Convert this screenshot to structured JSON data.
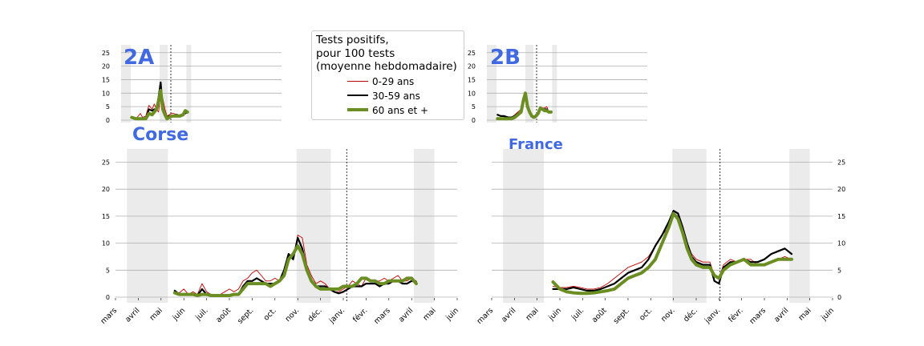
{
  "colors": {
    "age_0_29": "#c00000",
    "age_30_59": "#000000",
    "age_60_plus": "#6b8e23",
    "region_title": "#4169e1",
    "grid": "#b0b0b0",
    "shade": "#ebebeb"
  },
  "legend": {
    "title_lines": [
      "Tests positifs,",
      "pour 100 tests",
      "(moyenne hebdomadaire)"
    ],
    "entries": [
      "0-29 ans",
      "30-59 ans",
      "60 ans et +"
    ]
  },
  "chart_data": [
    {
      "type": "line",
      "title": "2A",
      "y_ticks": [
        0,
        5,
        10,
        15,
        20,
        25
      ],
      "ylim": [
        0,
        28
      ],
      "x_range_months": [
        0,
        15
      ],
      "shaded_periods_months": [
        [
          0,
          0.9
        ],
        [
          3.6,
          4.35
        ],
        [
          6.1,
          6.55
        ]
      ],
      "dashed_line_month": 4.65,
      "series": [
        {
          "name": "0-29 ans",
          "x": [
            1.0,
            1.4,
            1.8,
            2.0,
            2.3,
            2.6,
            2.9,
            3.1,
            3.3,
            3.5,
            3.7,
            3.9,
            4.1,
            4.3,
            4.5,
            4.7,
            4.9,
            5.2,
            5.5,
            5.8,
            6.0,
            6.2
          ],
          "y": [
            1,
            0.5,
            2.5,
            1,
            1.5,
            5.5,
            4,
            6,
            4,
            3,
            10,
            8,
            4,
            1.5,
            2,
            2.5,
            2.5,
            2,
            2,
            2.5,
            3,
            3
          ]
        },
        {
          "name": "30-59 ans",
          "x": [
            1.0,
            1.4,
            1.8,
            2.0,
            2.3,
            2.6,
            2.9,
            3.1,
            3.3,
            3.5,
            3.7,
            3.9,
            4.1,
            4.3,
            4.5,
            4.7,
            4.9,
            5.2,
            5.5,
            5.8,
            6.0,
            6.2
          ],
          "y": [
            1,
            0.5,
            0.5,
            0.5,
            0.5,
            4,
            3.5,
            4,
            4,
            8.5,
            14,
            4,
            2,
            1,
            1.5,
            1.5,
            1.5,
            2,
            1.5,
            2,
            2.5,
            3
          ]
        },
        {
          "name": "60 ans et +",
          "x": [
            1.0,
            1.4,
            1.8,
            2.0,
            2.3,
            2.6,
            2.9,
            3.1,
            3.3,
            3.5,
            3.7,
            3.9,
            4.1,
            4.3,
            4.5,
            4.7,
            4.9,
            5.2,
            5.5,
            5.8,
            6.0,
            6.2
          ],
          "y": [
            1,
            0.5,
            0.5,
            0.5,
            0.5,
            2.5,
            2,
            3,
            4,
            7,
            11,
            4,
            2,
            0.5,
            1,
            1.5,
            1.5,
            1.5,
            1.5,
            2,
            3.5,
            3
          ]
        }
      ]
    },
    {
      "type": "line",
      "title": "2B",
      "y_ticks": [
        0,
        5,
        10,
        15,
        20,
        25
      ],
      "ylim": [
        0,
        28
      ],
      "x_range_months": [
        0,
        15
      ],
      "shaded_periods_months": [
        [
          0,
          0.9
        ],
        [
          3.6,
          4.35
        ],
        [
          6.1,
          6.55
        ]
      ],
      "dashed_line_month": 4.65,
      "series": [
        {
          "name": "0-29 ans",
          "x": [
            1.0,
            1.3,
            1.6,
            2.0,
            2.3,
            2.6,
            2.9,
            3.2,
            3.4,
            3.6,
            3.8,
            4.0,
            4.2,
            4.4,
            4.6,
            4.8,
            5.0,
            5.2,
            5.4,
            5.6,
            5.8,
            6.0
          ],
          "y": [
            1,
            0.5,
            1,
            0.5,
            1,
            2,
            3,
            4,
            8,
            9,
            5,
            3,
            1.5,
            1,
            2,
            3,
            5,
            4.5,
            4.5,
            5,
            3,
            3
          ]
        },
        {
          "name": "30-59 ans",
          "x": [
            1.0,
            1.3,
            1.6,
            2.0,
            2.3,
            2.6,
            2.9,
            3.2,
            3.4,
            3.6,
            3.8,
            4.0,
            4.2,
            4.4,
            4.6,
            4.8,
            5.0,
            5.2,
            5.4,
            5.6,
            5.8,
            6.0
          ],
          "y": [
            2,
            1.5,
            1.5,
            1,
            1,
            1.5,
            2.5,
            3,
            8,
            8,
            5,
            2.5,
            1.5,
            1,
            2,
            2.5,
            4,
            4,
            4,
            4,
            3,
            3
          ]
        },
        {
          "name": "60 ans et +",
          "x": [
            1.0,
            1.3,
            1.6,
            2.0,
            2.3,
            2.6,
            2.9,
            3.2,
            3.4,
            3.6,
            3.8,
            4.0,
            4.2,
            4.4,
            4.6,
            4.8,
            5.0,
            5.2,
            5.4,
            5.6,
            5.8,
            6.0
          ],
          "y": [
            0.5,
            0.5,
            0.5,
            0.5,
            0.5,
            1,
            2,
            3,
            7,
            10,
            5,
            3,
            1.5,
            1,
            1.5,
            2.5,
            4.5,
            4,
            3.5,
            3.5,
            3,
            3
          ]
        }
      ]
    },
    {
      "type": "line",
      "title": "Corse",
      "y_ticks": [
        0,
        5,
        10,
        15,
        20,
        25
      ],
      "ylim": [
        -0.5,
        27.5
      ],
      "x_tick_labels": [
        "mars",
        "avril",
        "mai",
        "juin",
        "juil.",
        "août",
        "sept.",
        "oct.",
        "nov.",
        "déc.",
        "janv.",
        "févr.",
        "mars",
        "avril",
        "mai",
        "juin"
      ],
      "x_range_months": [
        0,
        15
      ],
      "shaded_periods_months": [
        [
          0.5,
          2.3
        ],
        [
          7.95,
          9.45
        ],
        [
          13.1,
          14.0
        ]
      ],
      "dashed_line_month": 10.15,
      "series": [
        {
          "name": "0-29 ans",
          "x": [
            2.6,
            2.8,
            3.0,
            3.2,
            3.4,
            3.6,
            3.8,
            4.0,
            4.2,
            4.4,
            4.6,
            4.8,
            5.0,
            5.2,
            5.4,
            5.6,
            5.8,
            6.0,
            6.2,
            6.4,
            6.6,
            6.8,
            7.0,
            7.2,
            7.4,
            7.6,
            7.8,
            8.0,
            8.2,
            8.4,
            8.6,
            8.8,
            9.0,
            9.2,
            9.4,
            9.6,
            9.8,
            10.0,
            10.2,
            10.4,
            10.6,
            10.8,
            11.0,
            11.2,
            11.4,
            11.6,
            11.8,
            12.0,
            12.2,
            12.4,
            12.6,
            12.8,
            13.0,
            13.2
          ],
          "y": [
            1,
            0.8,
            1.5,
            0.5,
            1,
            0.5,
            2.5,
            1,
            0.5,
            0.5,
            0.5,
            1,
            1.5,
            1,
            1.5,
            3,
            3.5,
            4.5,
            5,
            4,
            3,
            3,
            3.5,
            3,
            5,
            8,
            7,
            11.5,
            11,
            6,
            4,
            2.5,
            3,
            2.5,
            1.5,
            1,
            1,
            1.5,
            2,
            3,
            2.5,
            2,
            3.5,
            3,
            3,
            3,
            3.5,
            3,
            3.5,
            4,
            3,
            3,
            3.5,
            3
          ]
        },
        {
          "name": "30-59 ans",
          "x": [
            2.6,
            2.8,
            3.0,
            3.2,
            3.4,
            3.6,
            3.8,
            4.0,
            4.2,
            4.4,
            4.6,
            4.8,
            5.0,
            5.2,
            5.4,
            5.6,
            5.8,
            6.0,
            6.2,
            6.4,
            6.6,
            6.8,
            7.0,
            7.2,
            7.4,
            7.6,
            7.8,
            8.0,
            8.2,
            8.4,
            8.6,
            8.8,
            9.0,
            9.2,
            9.4,
            9.6,
            9.8,
            10.0,
            10.2,
            10.4,
            10.6,
            10.8,
            11.0,
            11.2,
            11.4,
            11.6,
            11.8,
            12.0,
            12.2,
            12.4,
            12.6,
            12.8,
            13.0,
            13.2
          ],
          "y": [
            1.2,
            0.5,
            0.5,
            0.5,
            0.5,
            0.3,
            1.5,
            0.5,
            0.3,
            0.3,
            0.3,
            0.3,
            0.3,
            0.5,
            0.5,
            2,
            3,
            3,
            3.5,
            3,
            2.5,
            2.5,
            2.5,
            3,
            5,
            8,
            7,
            11,
            9,
            5,
            3,
            2,
            2,
            2,
            1.5,
            1,
            0.7,
            1,
            1.5,
            2,
            2,
            2,
            2.5,
            2.5,
            2.5,
            2,
            2.5,
            2.5,
            3,
            3,
            2.5,
            2.5,
            3,
            2.8
          ]
        },
        {
          "name": "60 ans et +",
          "x": [
            2.6,
            2.8,
            3.0,
            3.2,
            3.4,
            3.6,
            3.8,
            4.0,
            4.2,
            4.4,
            4.6,
            4.8,
            5.0,
            5.2,
            5.4,
            5.6,
            5.8,
            6.0,
            6.2,
            6.4,
            6.6,
            6.8,
            7.0,
            7.2,
            7.4,
            7.6,
            7.8,
            8.0,
            8.2,
            8.4,
            8.6,
            8.8,
            9.0,
            9.2,
            9.4,
            9.6,
            9.8,
            10.0,
            10.2,
            10.4,
            10.6,
            10.8,
            11.0,
            11.2,
            11.4,
            11.6,
            11.8,
            12.0,
            12.2,
            12.4,
            12.6,
            12.8,
            13.0,
            13.2
          ],
          "y": [
            0.8,
            0.5,
            0.5,
            0.5,
            0.5,
            0.3,
            0.5,
            0.5,
            0.3,
            0.3,
            0.3,
            0.3,
            0.3,
            0.5,
            0.5,
            1.5,
            2.5,
            2.5,
            2.5,
            2.5,
            2.5,
            2,
            2.5,
            3,
            4,
            7,
            8,
            9.5,
            8,
            5,
            3,
            2,
            1.5,
            1.5,
            1.5,
            1.5,
            1.5,
            2,
            2,
            2,
            2.5,
            3.5,
            3.5,
            3,
            3,
            2.5,
            2.5,
            3,
            3,
            3,
            3,
            3.5,
            3.5,
            2.5
          ]
        }
      ]
    },
    {
      "type": "line",
      "title": "France",
      "y_ticks": [
        0,
        5,
        10,
        15,
        20,
        25
      ],
      "ylim": [
        -0.5,
        27.5
      ],
      "x_tick_labels": [
        "mars",
        "avril",
        "mai",
        "juin",
        "juil.",
        "août",
        "sept.",
        "oct.",
        "nov.",
        "déc.",
        "janv.",
        "févr.",
        "mars",
        "avril",
        "mai",
        "juin"
      ],
      "x_range_months": [
        0,
        15
      ],
      "shaded_periods_months": [
        [
          0.5,
          2.3
        ],
        [
          7.95,
          9.45
        ],
        [
          13.1,
          14.0
        ]
      ],
      "dashed_line_month": 10.05,
      "series": [
        {
          "name": "0-29 ans",
          "x": [
            2.7,
            3.0,
            3.3,
            3.6,
            3.9,
            4.2,
            4.5,
            4.8,
            5.1,
            5.4,
            5.7,
            6.0,
            6.3,
            6.6,
            6.9,
            7.2,
            7.5,
            7.8,
            8.0,
            8.2,
            8.4,
            8.6,
            8.8,
            9.0,
            9.3,
            9.6,
            9.8,
            10.0,
            10.2,
            10.5,
            10.8,
            11.1,
            11.4,
            11.7,
            12.0,
            12.3,
            12.6,
            12.9,
            13.2
          ],
          "y": [
            2,
            1.8,
            1.8,
            2,
            1.8,
            1.5,
            1.5,
            1.8,
            2.5,
            3.5,
            4.5,
            5.5,
            6,
            6.5,
            7.5,
            9.5,
            11.5,
            13,
            15.5,
            15,
            13,
            10,
            8,
            7,
            6.5,
            6.5,
            4,
            3.5,
            6,
            7,
            6.5,
            7,
            7,
            6,
            6,
            6.5,
            7,
            7.5,
            7
          ]
        },
        {
          "name": "30-59 ans",
          "x": [
            2.7,
            3.0,
            3.3,
            3.6,
            3.9,
            4.2,
            4.5,
            4.8,
            5.1,
            5.4,
            5.7,
            6.0,
            6.3,
            6.6,
            6.9,
            7.2,
            7.5,
            7.8,
            8.0,
            8.2,
            8.4,
            8.6,
            8.8,
            9.0,
            9.3,
            9.6,
            9.8,
            10.0,
            10.2,
            10.5,
            10.8,
            11.1,
            11.4,
            11.7,
            12.0,
            12.3,
            12.6,
            12.9,
            13.2
          ],
          "y": [
            1.5,
            1.5,
            1.5,
            1.8,
            1.5,
            1.2,
            1.2,
            1.5,
            2,
            2.5,
            3.5,
            4.5,
            5,
            5.5,
            7,
            9.5,
            11.5,
            14,
            16,
            15.5,
            13,
            10,
            7.5,
            6.5,
            6,
            6,
            3,
            2.5,
            5.5,
            6.5,
            6.5,
            7,
            6.5,
            6.5,
            7,
            8,
            8.5,
            9,
            8
          ]
        },
        {
          "name": "60 ans et +",
          "x": [
            2.7,
            3.0,
            3.3,
            3.6,
            3.9,
            4.2,
            4.5,
            4.8,
            5.1,
            5.4,
            5.7,
            6.0,
            6.3,
            6.6,
            6.9,
            7.2,
            7.5,
            7.8,
            8.0,
            8.2,
            8.4,
            8.6,
            8.8,
            9.0,
            9.3,
            9.6,
            9.8,
            10.0,
            10.2,
            10.5,
            10.8,
            11.1,
            11.4,
            11.7,
            12.0,
            12.3,
            12.6,
            12.9,
            13.2
          ],
          "y": [
            2.8,
            1.5,
            1,
            0.8,
            0.7,
            0.7,
            0.8,
            1,
            1.2,
            1.5,
            2.5,
            3.5,
            4,
            4.5,
            5.5,
            7,
            10,
            13,
            15.5,
            14.5,
            12,
            9,
            7,
            6,
            5.5,
            5.5,
            4,
            3.5,
            5,
            6,
            6.5,
            7,
            6,
            6,
            6,
            6.5,
            7,
            7,
            7
          ]
        }
      ]
    }
  ]
}
